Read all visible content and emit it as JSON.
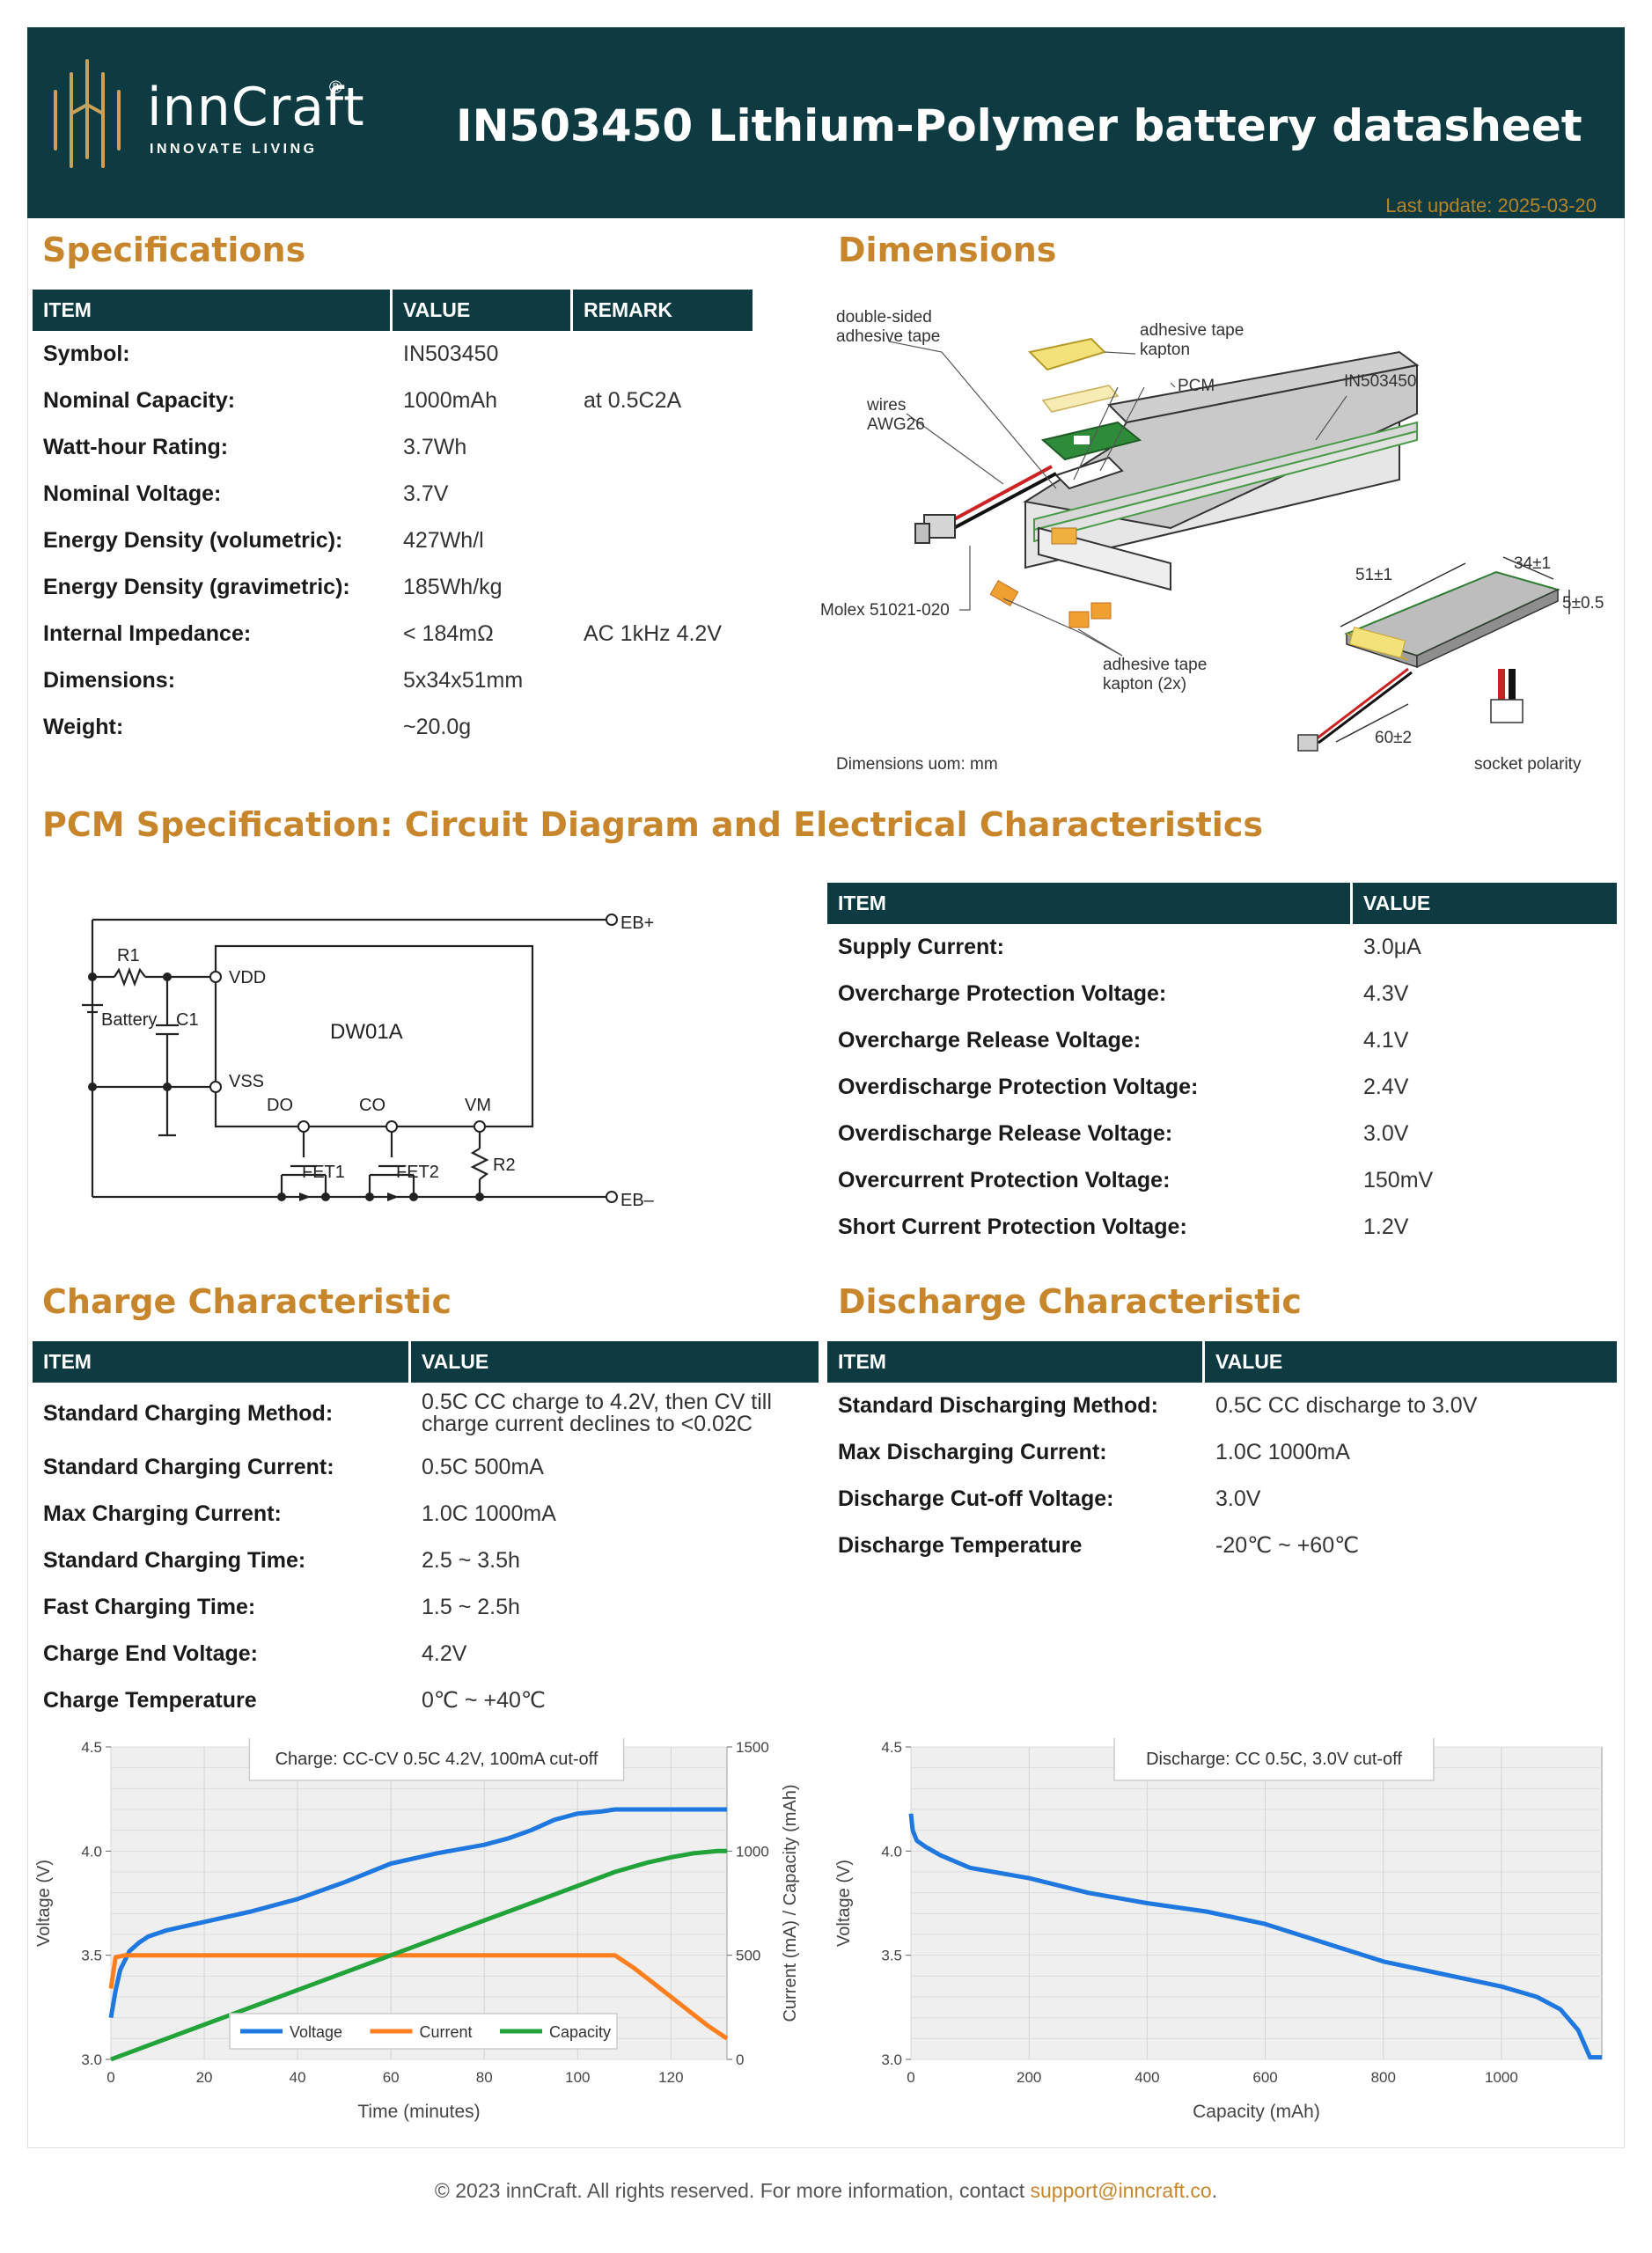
{
  "header": {
    "brand": "innCraft",
    "registered": "®",
    "tagline": "INNOVATE LIVING",
    "title": "IN503450 Lithium-Polymer battery datasheet",
    "last_update": "Last update: 2025-03-20"
  },
  "colors": {
    "header_bg": "#0d3b41",
    "accent": "#c8862c",
    "voltage": "#1f77e0",
    "current": "#ff7f1f",
    "capacity": "#22a33a"
  },
  "specifications": {
    "title": "Specifications",
    "columns": [
      "ITEM",
      "VALUE",
      "REMARK"
    ],
    "rows": [
      {
        "item": "Symbol:",
        "value": "IN503450",
        "remark": ""
      },
      {
        "item": "Nominal Capacity:",
        "value": "1000mAh",
        "remark": "at 0.5C2A"
      },
      {
        "item": "Watt-hour Rating:",
        "value": "3.7Wh",
        "remark": ""
      },
      {
        "item": "Nominal Voltage:",
        "value": "3.7V",
        "remark": ""
      },
      {
        "item": "Energy Density (volumetric):",
        "value": "427Wh/l",
        "remark": ""
      },
      {
        "item": "Energy Density (gravimetric):",
        "value": "185Wh/kg",
        "remark": ""
      },
      {
        "item": "Internal Impedance:",
        "value": "< 184mΩ",
        "remark": "AC 1kHz 4.2V"
      },
      {
        "item": "Dimensions:",
        "value": "5x34x51mm",
        "remark": ""
      },
      {
        "item": "Weight:",
        "value": "~20.0g",
        "remark": ""
      }
    ]
  },
  "dimensions": {
    "title": "Dimensions",
    "labels": {
      "double_sided": "double-sided\nadhesive tape",
      "adhesive_kapton": "adhesive tape\nkapton",
      "pcm": "PCM",
      "model": "IN503450",
      "wires": "wires\nAWG26",
      "molex": "Molex 51021-020",
      "kapton2x": "adhesive tape\nkapton (2x)",
      "dim_51": "51±1",
      "dim_34": "34±1",
      "dim_5": "5±0.5",
      "dim_60": "60±2",
      "socket": "socket polarity",
      "uom": "Dimensions uom: mm"
    }
  },
  "pcm": {
    "title": "PCM Specification: Circuit Diagram and Electrical Characteristics",
    "circuit": {
      "r1": "R1",
      "battery": "Battery",
      "c1": "C1",
      "vdd": "VDD",
      "vss": "VSS",
      "ic": "DW01A",
      "do": "DO",
      "co": "CO",
      "vm": "VM",
      "r2": "R2",
      "fet1": "FET1",
      "fet2": "FET2",
      "ebp": "EB+",
      "ebm": "EB–"
    },
    "columns": [
      "ITEM",
      "VALUE"
    ],
    "rows": [
      {
        "item": "Supply Current:",
        "value": "3.0μA"
      },
      {
        "item": "Overcharge Protection Voltage:",
        "value": "4.3V"
      },
      {
        "item": "Overcharge Release Voltage:",
        "value": "4.1V"
      },
      {
        "item": "Overdischarge Protection Voltage:",
        "value": "2.4V"
      },
      {
        "item": "Overdischarge Release Voltage:",
        "value": "3.0V"
      },
      {
        "item": "Overcurrent Protection Voltage:",
        "value": "150mV"
      },
      {
        "item": "Short Current Protection Voltage:",
        "value": "1.2V"
      }
    ]
  },
  "charge": {
    "title": "Charge Characteristic",
    "columns": [
      "ITEM",
      "VALUE"
    ],
    "rows": [
      {
        "item": "Standard Charging Method:",
        "value": "0.5C CC charge to 4.2V, then CV till",
        "value2": "charge current declines to <0.02C"
      },
      {
        "item": "Standard Charging Current:",
        "value": "0.5C 500mA"
      },
      {
        "item": "Max Charging Current:",
        "value": "1.0C 1000mA"
      },
      {
        "item": "Standard Charging Time:",
        "value": "2.5 ~ 3.5h"
      },
      {
        "item": "Fast Charging Time:",
        "value": "1.5 ~ 2.5h"
      },
      {
        "item": "Charge End Voltage:",
        "value": "4.2V"
      },
      {
        "item": "Charge Temperature",
        "value": "0℃ ~ +40℃"
      }
    ]
  },
  "discharge": {
    "title": "Discharge Characteristic",
    "columns": [
      "ITEM",
      "VALUE"
    ],
    "rows": [
      {
        "item": "Standard Discharging Method:",
        "value": "0.5C CC discharge to 3.0V"
      },
      {
        "item": "Max Discharging Current:",
        "value": "1.0C 1000mA"
      },
      {
        "item": "Discharge Cut-off Voltage:",
        "value": "3.0V"
      },
      {
        "item": "Discharge Temperature",
        "value": "-20℃ ~ +60℃"
      }
    ]
  },
  "chart_data": [
    {
      "type": "line",
      "title": "Charge: CC-CV 0.5C 4.2V, 100mA cut-off",
      "xlabel": "Time (minutes)",
      "ylabel": "Voltage (V)",
      "y2label": "Current (mA) / Capacity (mAh)",
      "xlim": [
        0,
        132
      ],
      "ylim": [
        3.0,
        4.5
      ],
      "y2lim": [
        0,
        1500
      ],
      "xticks": [
        "0",
        "20",
        "40",
        "60",
        "80",
        "100",
        "120"
      ],
      "yticks": [
        "3.0",
        "3.5",
        "4.0",
        "4.5"
      ],
      "y2ticks": [
        "0",
        "500",
        "1000",
        "1500"
      ],
      "legend": "bottom-left",
      "grid": true,
      "series": [
        {
          "name": "Voltage",
          "axis": "left",
          "x": [
            0,
            1,
            2,
            4,
            6,
            8,
            12,
            20,
            30,
            40,
            50,
            60,
            70,
            80,
            85,
            90,
            95,
            100,
            105,
            108,
            115,
            132
          ],
          "y": [
            3.2,
            3.33,
            3.43,
            3.52,
            3.56,
            3.59,
            3.62,
            3.66,
            3.71,
            3.77,
            3.85,
            3.94,
            3.99,
            4.03,
            4.06,
            4.1,
            4.15,
            4.18,
            4.19,
            4.2,
            4.2,
            4.2
          ]
        },
        {
          "name": "Current",
          "axis": "right",
          "x": [
            0,
            1,
            3,
            10,
            20,
            40,
            60,
            80,
            100,
            108,
            112,
            116,
            120,
            124,
            128,
            132
          ],
          "y": [
            340,
            490,
            500,
            500,
            500,
            500,
            500,
            500,
            500,
            500,
            440,
            370,
            300,
            230,
            160,
            100
          ]
        },
        {
          "name": "Capacity",
          "axis": "right",
          "x": [
            0,
            20,
            40,
            60,
            80,
            100,
            108,
            115,
            120,
            125,
            130,
            132
          ],
          "y": [
            0,
            167,
            333,
            500,
            667,
            833,
            900,
            945,
            970,
            990,
            1000,
            1000
          ]
        }
      ]
    },
    {
      "type": "line",
      "title": "Discharge: CC 0.5C, 3.0V cut-off",
      "xlabel": "Capacity (mAh)",
      "ylabel": "Voltage (V)",
      "xlim": [
        0,
        1170
      ],
      "ylim": [
        3.0,
        4.5
      ],
      "xticks": [
        "0",
        "200",
        "400",
        "600",
        "800",
        "1000"
      ],
      "yticks": [
        "3.0",
        "3.5",
        "4.0",
        "4.5"
      ],
      "grid": true,
      "series": [
        {
          "name": "Voltage",
          "x": [
            0,
            3,
            10,
            25,
            50,
            100,
            200,
            300,
            400,
            500,
            600,
            700,
            800,
            900,
            1000,
            1060,
            1100,
            1130,
            1150,
            1170
          ],
          "y": [
            4.18,
            4.1,
            4.05,
            4.02,
            3.98,
            3.92,
            3.87,
            3.8,
            3.75,
            3.71,
            3.65,
            3.56,
            3.47,
            3.41,
            3.35,
            3.3,
            3.24,
            3.14,
            3.01,
            3.01
          ]
        }
      ]
    }
  ],
  "footer": {
    "text": "© 2023 innCraft. All rights reserved. For more information, contact ",
    "email": "support@inncraft.co",
    "end": "."
  }
}
